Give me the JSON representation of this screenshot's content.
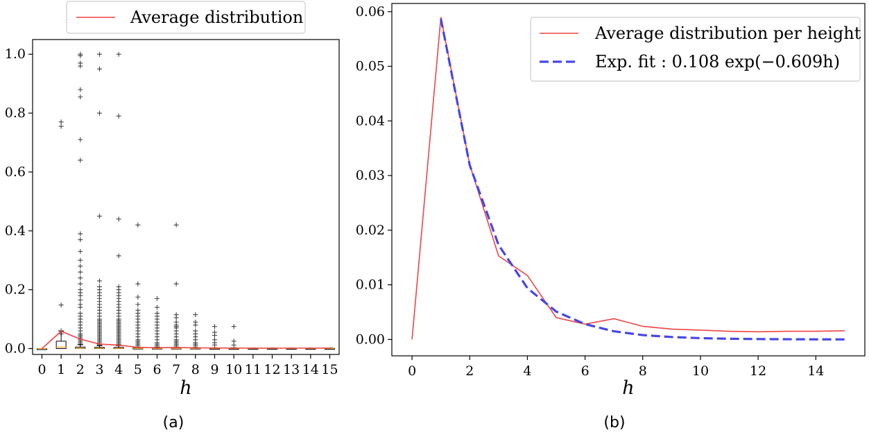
{
  "chart_data": [
    {
      "type": "box",
      "panel_label": "(a)",
      "xlabel": "h",
      "ylabel": "",
      "ylim": [
        0,
        1.0
      ],
      "categories": [
        "0",
        "1",
        "2",
        "3",
        "4",
        "5",
        "6",
        "7",
        "8",
        "9",
        "10",
        "11",
        "12",
        "13",
        "14",
        "15"
      ],
      "yticks": [
        "0.0",
        "0.2",
        "0.4",
        "0.6",
        "0.8",
        "1.0"
      ],
      "legend": {
        "label": "Average distribution",
        "placement": "top-center",
        "color": "#ee4444"
      },
      "boxes": [
        {
          "h": 0,
          "q1": 0,
          "q3": 0,
          "median": 0,
          "whisker_high": 0
        },
        {
          "h": 1,
          "q1": 0,
          "q3": 0.025,
          "median": 0.005,
          "whisker_high": 0.06
        },
        {
          "h": 2,
          "q1": 0,
          "q3": 0.005,
          "median": 0.001,
          "whisker_high": 0.013
        },
        {
          "h": 3,
          "q1": 0,
          "q3": 0.004,
          "median": 0.001,
          "whisker_high": 0.01
        },
        {
          "h": 4,
          "q1": 0,
          "q3": 0.004,
          "median": 0.001,
          "whisker_high": 0.01
        },
        {
          "h": 5,
          "q1": 0,
          "q3": 0.002,
          "median": 0.0005,
          "whisker_high": 0.005
        },
        {
          "h": 6,
          "q1": 0,
          "q3": 0.002,
          "median": 0.0005,
          "whisker_high": 0.005
        },
        {
          "h": 7,
          "q1": 0,
          "q3": 0.002,
          "median": 0.0005,
          "whisker_high": 0.005
        },
        {
          "h": 8,
          "q1": 0,
          "q3": 0.002,
          "median": 0.0005,
          "whisker_high": 0.004
        },
        {
          "h": 9,
          "q1": 0,
          "q3": 0.001,
          "median": 0.0003,
          "whisker_high": 0.003
        },
        {
          "h": 10,
          "q1": 0,
          "q3": 0.001,
          "median": 0.0003,
          "whisker_high": 0.003
        },
        {
          "h": 11,
          "q1": 0,
          "q3": 0.001,
          "median": 0.0003,
          "whisker_high": 0.002
        },
        {
          "h": 12,
          "q1": 0,
          "q3": 0.001,
          "median": 0.0003,
          "whisker_high": 0.002
        },
        {
          "h": 13,
          "q1": 0,
          "q3": 0.001,
          "median": 0.0003,
          "whisker_high": 0.002
        },
        {
          "h": 14,
          "q1": 0,
          "q3": 0.001,
          "median": 0.0003,
          "whisker_high": 0.002
        },
        {
          "h": 15,
          "q1": 0,
          "q3": 0.001,
          "median": 0.0003,
          "whisker_high": 0.002
        }
      ],
      "outliers": [
        {
          "h": 1,
          "values": [
            0.77,
            0.755,
            0.148,
            0.06,
            0.05
          ]
        },
        {
          "h": 2,
          "values": [
            1.0,
            0.995,
            0.97,
            0.96,
            0.88,
            0.855,
            0.71,
            0.64,
            0.39,
            0.37,
            0.33,
            0.3,
            0.28,
            0.26,
            0.24,
            0.22,
            0.2,
            0.19,
            0.18,
            0.165,
            0.15,
            0.14,
            0.12,
            0.11,
            0.1,
            0.09,
            0.08,
            0.07,
            0.06,
            0.05,
            0.045,
            0.04,
            0.035,
            0.03,
            0.025,
            0.02,
            0.015
          ]
        },
        {
          "h": 3,
          "values": [
            1.0,
            0.95,
            0.8,
            0.45,
            0.23,
            0.21,
            0.2,
            0.19,
            0.18,
            0.17,
            0.16,
            0.15,
            0.14,
            0.13,
            0.12,
            0.11,
            0.1,
            0.095,
            0.09,
            0.085,
            0.08,
            0.075,
            0.07,
            0.065,
            0.06,
            0.055,
            0.05,
            0.045,
            0.04,
            0.035,
            0.03,
            0.025,
            0.02,
            0.015,
            0.012
          ]
        },
        {
          "h": 4,
          "values": [
            1.0,
            0.79,
            0.44,
            0.315,
            0.21,
            0.2,
            0.19,
            0.18,
            0.17,
            0.16,
            0.15,
            0.14,
            0.13,
            0.12,
            0.11,
            0.1,
            0.095,
            0.09,
            0.085,
            0.08,
            0.075,
            0.07,
            0.065,
            0.06,
            0.055,
            0.05,
            0.045,
            0.04,
            0.035,
            0.03,
            0.025,
            0.02,
            0.015,
            0.012
          ]
        },
        {
          "h": 5,
          "values": [
            0.42,
            0.22,
            0.175,
            0.15,
            0.13,
            0.12,
            0.11,
            0.1,
            0.09,
            0.08,
            0.07,
            0.06,
            0.05,
            0.04,
            0.03,
            0.025,
            0.02,
            0.015,
            0.01
          ]
        },
        {
          "h": 6,
          "values": [
            0.17,
            0.14,
            0.12,
            0.11,
            0.1,
            0.09,
            0.08,
            0.07,
            0.06,
            0.05,
            0.04,
            0.03,
            0.02,
            0.015,
            0.01
          ]
        },
        {
          "h": 7,
          "values": [
            0.42,
            0.22,
            0.115,
            0.105,
            0.09,
            0.08,
            0.075,
            0.07,
            0.06,
            0.05,
            0.04,
            0.03,
            0.025,
            0.02,
            0.015,
            0.01
          ]
        },
        {
          "h": 8,
          "values": [
            0.115,
            0.09,
            0.08,
            0.06,
            0.05,
            0.04,
            0.03,
            0.02,
            0.015,
            0.01
          ]
        },
        {
          "h": 9,
          "values": [
            0.075,
            0.055,
            0.045,
            0.03,
            0.02,
            0.012
          ]
        },
        {
          "h": 10,
          "values": [
            0.075,
            0.025,
            0.012
          ]
        }
      ],
      "average_line": {
        "name": "Average distribution",
        "x": [
          0,
          1,
          2,
          3,
          4,
          5,
          6,
          7,
          8,
          9,
          10,
          11,
          12,
          13,
          14,
          15
        ],
        "y": [
          0,
          0.059,
          0.032,
          0.0153,
          0.0117,
          0.004,
          0.0028,
          0.0038,
          0.0024,
          0.0019,
          0.0017,
          0.0015,
          0.0014,
          0.0015,
          0.0015,
          0.0016
        ]
      }
    },
    {
      "type": "line",
      "panel_label": "(b)",
      "xlabel": "h",
      "ylabel": "",
      "xlim": [
        -0.7,
        15.7
      ],
      "ylim": [
        -0.003,
        0.0615
      ],
      "xticks": [
        "0",
        "2",
        "4",
        "6",
        "8",
        "10",
        "12",
        "14"
      ],
      "yticks": [
        "0.00",
        "0.01",
        "0.02",
        "0.03",
        "0.04",
        "0.05",
        "0.06"
      ],
      "legend_placement": "top-right",
      "series": [
        {
          "name": "Average distribution per height",
          "color": "#ee4444",
          "style": "solid",
          "x": [
            0,
            1,
            2,
            3,
            4,
            5,
            6,
            7,
            8,
            9,
            10,
            11,
            12,
            13,
            14,
            15
          ],
          "y": [
            0,
            0.059,
            0.032,
            0.0153,
            0.0117,
            0.004,
            0.0028,
            0.0038,
            0.0024,
            0.0019,
            0.0017,
            0.0015,
            0.0014,
            0.0015,
            0.0015,
            0.0016
          ]
        },
        {
          "name": "Exp. fit : 0.108 exp(−0.609h)",
          "color": "#4646e6",
          "style": "dashed",
          "x": [
            1,
            2,
            3,
            4,
            5,
            6,
            7,
            8,
            9,
            10,
            11,
            12,
            13,
            14,
            15
          ],
          "y": [
            0.0587,
            0.0319,
            0.0173,
            0.0094,
            0.0051,
            0.0028,
            0.0015,
            0.0008,
            0.00045,
            0.00024,
            0.00013,
            7e-05,
            4e-05,
            2e-05,
            1e-05
          ]
        }
      ]
    }
  ]
}
